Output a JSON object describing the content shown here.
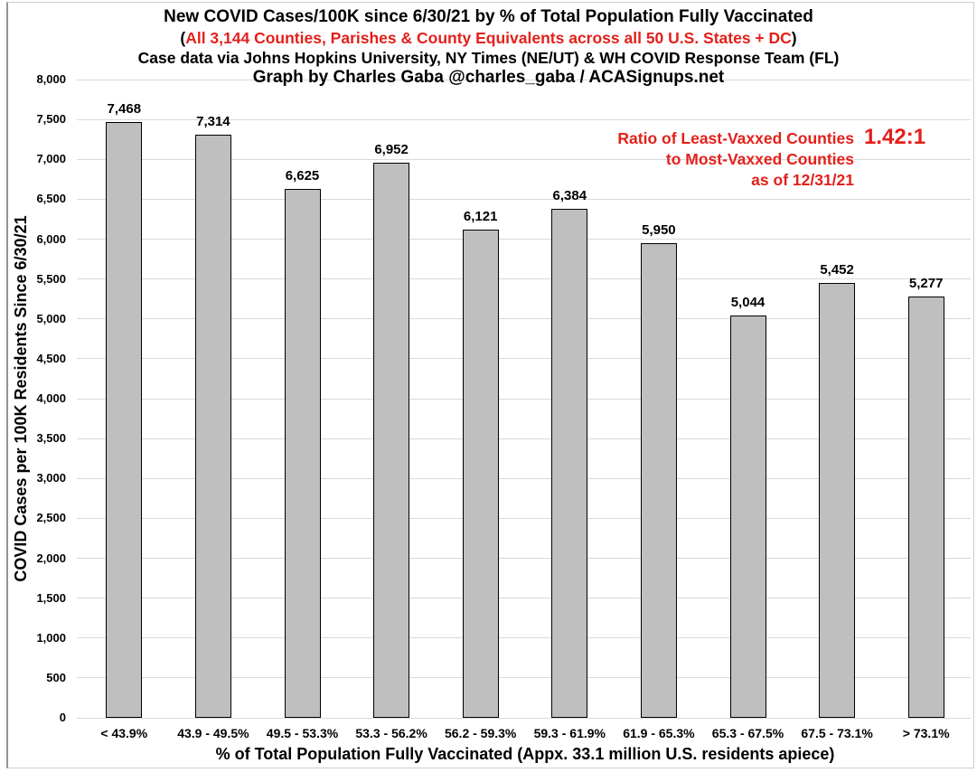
{
  "colors": {
    "accent_red": "#e3201b",
    "gridline": "#d9d9d9",
    "text": "#000000",
    "frame_border": "#cfcfcf"
  },
  "header": {
    "title": "New COVID Cases/100K since 6/30/21 by % of Total Population Fully Vaccinated",
    "subtitle_open_paren": "(",
    "subtitle_text": "All 3,144 Counties, Parishes & County Equivalents across all 50 U.S. States + DC",
    "subtitle_close_paren": ")",
    "source_line": "Case data via Johns Hopkins University, NY Times (NE/UT) & WH COVID Response Team (FL)",
    "credit_line": "Graph by Charles Gaba @charles_gaba / ACASignups.net"
  },
  "annotation": {
    "line1": "Ratio of Least-Vaxxed Counties",
    "line2": "to Most-Vaxxed Counties",
    "line3": "as of 12/31/21",
    "ratio_value": "1.42:1"
  },
  "chart_data": {
    "type": "bar",
    "title": "New COVID Cases/100K since 6/30/21 by % of Total Population Fully Vaccinated",
    "categories": [
      "< 43.9%",
      "43.9 - 49.5%",
      "49.5 - 53.3%",
      "53.3 - 56.2%",
      "56.2 - 59.3%",
      "59.3 - 61.9%",
      "61.9 - 65.3%",
      "65.3 - 67.5%",
      "67.5 - 73.1%",
      "> 73.1%"
    ],
    "values": [
      7468,
      7314,
      6625,
      6952,
      6121,
      6384,
      5950,
      5044,
      5452,
      5277
    ],
    "value_labels": [
      "7,468",
      "7,314",
      "6,625",
      "6,952",
      "6,121",
      "6,384",
      "5,950",
      "5,044",
      "5,452",
      "5,277"
    ],
    "xlabel": "% of Total Population Fully Vaccinated (Appx. 33.1 million U.S. residents apiece)",
    "ylabel": "COVID Cases per 100K Residents Since 6/30/21",
    "ylim": [
      0,
      8000
    ],
    "ytick_step": 500,
    "grid": true,
    "legend_position": "none",
    "bar_color": "#bfbfbf",
    "bar_border_color": "#000000"
  }
}
